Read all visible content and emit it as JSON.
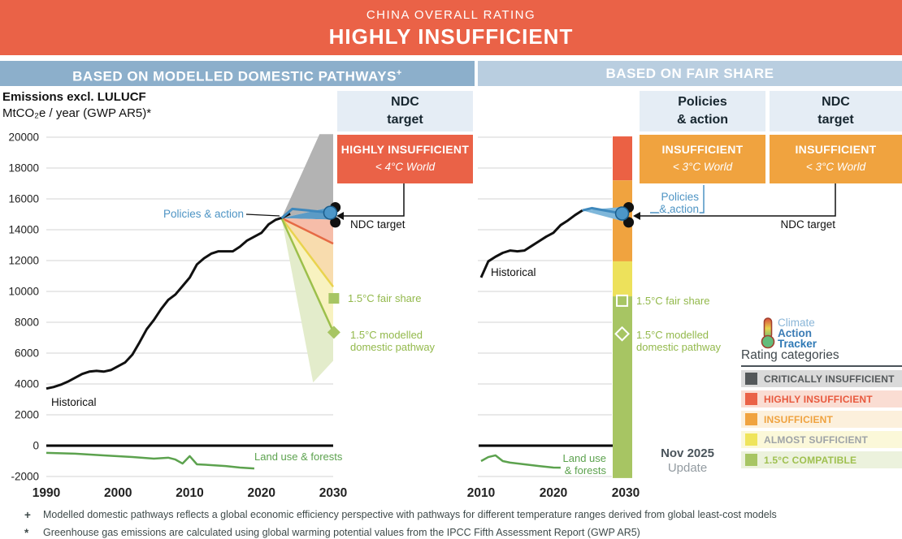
{
  "header": {
    "kicker": "CHINA OVERALL RATING",
    "rating": "HIGHLY INSUFFICIENT",
    "color": "#EA6247"
  },
  "panel_headers": {
    "left": "BASED ON MODELLED DOMESTIC PATHWAYS",
    "left_footnote_mark": "+",
    "right": "BASED ON FAIR SHARE",
    "left_color": "#8CAFCB",
    "right_color": "#B9CEE0"
  },
  "axis_block": {
    "title": "Emissions excl. LULUCF",
    "subtitle": "MtCO₂e / year (GWP AR5)*"
  },
  "rating_columns": [
    {
      "id": "ndc-left",
      "header_line1": "NDC",
      "header_line2": "target",
      "rating": "HIGHLY INSUFFICIENT",
      "world": "< 4°C World",
      "box_color": "#EA6247"
    },
    {
      "id": "pa-right",
      "header_line1": "Policies",
      "header_line2": "& action",
      "rating": "INSUFFICIENT",
      "world": "< 3°C World",
      "box_color": "#F0A33F"
    },
    {
      "id": "ndc-right",
      "header_line1": "NDC",
      "header_line2": "target",
      "rating": "INSUFFICIENT",
      "world": "< 3°C World",
      "box_color": "#F0A33F"
    }
  ],
  "logo": {
    "line1": "Climate",
    "line2": "Action",
    "line3": "Tracker"
  },
  "legend": {
    "title": "Rating categories",
    "items": [
      {
        "label": "CRITICALLY INSUFFICIENT",
        "square": "#54585A",
        "bg": "#DADADA",
        "text": "#54585A"
      },
      {
        "label": "HIGHLY INSUFFICIENT",
        "square": "#EA6247",
        "bg": "#FADDD3",
        "text": "#E8593E"
      },
      {
        "label": "INSUFFICIENT",
        "square": "#F0A33F",
        "bg": "#FCF0DC",
        "text": "#EFA23F"
      },
      {
        "label": "ALMOST SUFFICIENT",
        "square": "#EFE45C",
        "bg": "#FBF8D9",
        "text": "#9EA3A7"
      },
      {
        "label": "1.5°C COMPATIBLE",
        "square": "#A7C563",
        "bg": "#ECF2DD",
        "text": "#9FC050"
      }
    ]
  },
  "update_badge": {
    "line1": "Nov 2025",
    "line2": "Update"
  },
  "footnotes": [
    {
      "symbol": "+",
      "text": "Modelled domestic pathways reflects a global economic efficiency perspective with pathways for different temperature ranges derived from global least-cost models"
    },
    {
      "symbol": "*",
      "text": "Greenhouse gas emissions are calculated using global warming potential values from the IPCC Fifth Assessment Report (GWP AR5)"
    }
  ],
  "chart_data": {
    "type": "line",
    "unit": "MtCO2e / year (GWP AR5)",
    "y_ticks": [
      20000,
      18000,
      16000,
      14000,
      12000,
      10000,
      8000,
      6000,
      4000,
      2000,
      0,
      -2000
    ],
    "colors": {
      "historical": "#111111",
      "land_use": "#5CA24E",
      "gridline": "#DCDCDC",
      "zero_line": "#000000"
    },
    "labels": {
      "left_policies_action": "Policies & action",
      "left_historical": "Historical",
      "left_ndc_target": "NDC target",
      "left_fair_share": "1.5°C fair share",
      "left_modelled_1": "1.5°C modelled",
      "left_modelled_2": "domestic pathway",
      "left_land_use": "Land use & forests",
      "right_historical": "Historical",
      "right_policies_1": "Policies",
      "right_policies_2": "& action",
      "right_ndc_target": "NDC target",
      "right_fair_share": "1.5°C fair share",
      "right_modelled_1": "1.5°C modelled",
      "right_modelled_2": "domestic pathway",
      "right_land_use_1": "Land use",
      "right_land_use_2": "& forests"
    },
    "left": {
      "title": "Based on modelled domestic pathways",
      "x_ticks": [
        1990,
        2000,
        2010,
        2020,
        2030
      ],
      "historical": {
        "start_year": 1990,
        "values": [
          3700,
          3800,
          3950,
          4150,
          4400,
          4650,
          4800,
          4850,
          4800,
          4900,
          5150,
          5400,
          5900,
          6700,
          7550,
          8150,
          8850,
          9450,
          9800,
          10350,
          10900,
          11750,
          12150,
          12450,
          12600,
          12600,
          12600,
          12900,
          13300,
          13550,
          13800,
          14350,
          14650,
          14800,
          15050
        ]
      },
      "land_use": {
        "years": [
          1990,
          1994,
          1998,
          2002,
          2005,
          2007,
          2008,
          2009,
          2010,
          2011,
          2013,
          2015,
          2017,
          2019
        ],
        "values": [
          -470,
          -520,
          -630,
          -740,
          -840,
          -780,
          -900,
          -1160,
          -680,
          -1210,
          -1260,
          -1320,
          -1420,
          -1480
        ]
      },
      "fan": {
        "apex": {
          "year": 2022.8,
          "value": 14750
        },
        "bands": [
          {
            "name": "critically_insufficient_range",
            "fill": "#B3B3B3",
            "top_end": 20200,
            "top_clip_year": 2028.1,
            "bottom_end": 15500
          },
          {
            "name": "policies_action_range",
            "fill": "#5B9BC6",
            "top_end": 15500,
            "bottom_end": 14650
          },
          {
            "name": "highly_insufficient_range",
            "fill": "#F6BDA9",
            "top_end": 14650,
            "bottom_end": 13100
          },
          {
            "name": "insufficient_range",
            "fill": "#F8DCAE",
            "top_end": 13100,
            "bottom_end": 10300
          },
          {
            "name": "almost_sufficient_range",
            "fill": "#F8F2C0",
            "top_end": 10300,
            "bottom_end": 7400
          },
          {
            "name": "compatible_1_5_range",
            "fill": "#E3ECCB",
            "top_end": 7400,
            "bottom_end": 5500,
            "dip": {
              "year": 2027.2,
              "value": 4100
            }
          }
        ],
        "boundary_lines": [
          {
            "name": "highly_insufficient_boundary",
            "color": "#E66A45",
            "end": 13100
          },
          {
            "name": "almost_sufficient_boundary",
            "color": "#E9D34E",
            "end": 10300
          },
          {
            "name": "modelled_pathway_boundary",
            "color": "#9CBF4B",
            "end": 7400
          }
        ],
        "policies_line": {
          "color": "#3E88BC",
          "points": [
            [
              2022.8,
              14750
            ],
            [
              2024.3,
              15350
            ],
            [
              2026.5,
              15250
            ],
            [
              2029.6,
              15100
            ]
          ]
        }
      },
      "markers": {
        "policies_circle": {
          "year": 2029.6,
          "value": 15100,
          "fill": "#4C96C8",
          "stroke": "#1C5E8C"
        },
        "ndc_dots": [
          {
            "year": 2030.3,
            "value": 15450
          },
          {
            "year": 2030.3,
            "value": 14480
          }
        ],
        "fair_share_square": {
          "year": 2030.1,
          "value": 9550,
          "fill": "#A7C563"
        },
        "modelled_diamond": {
          "year": 2030.1,
          "value": 7350,
          "fill": "#A7C563"
        }
      }
    },
    "right": {
      "title": "Based on fair share",
      "x_ticks": [
        2010,
        2020,
        2030
      ],
      "historical": {
        "start_year": 2010,
        "values": [
          10900,
          11950,
          12250,
          12500,
          12650,
          12600,
          12650,
          12950,
          13250,
          13550,
          13800,
          14300,
          14600,
          14950,
          15250
        ]
      },
      "land_use": {
        "years": [
          2010,
          2011,
          2012,
          2013,
          2014,
          2016,
          2018,
          2020,
          2021
        ],
        "values": [
          -1000,
          -740,
          -630,
          -1000,
          -1100,
          -1210,
          -1320,
          -1420,
          -1430
        ]
      },
      "band": {
        "start": {
          "year": 2024,
          "value": 15250
        },
        "top_end": 15500,
        "bottom_end": 14500,
        "fill": "#7FB7DA",
        "line": {
          "color": "#3E88BC",
          "points": [
            [
              2024,
              15250
            ],
            [
              2025.3,
              15400
            ],
            [
              2029.5,
              15050
            ]
          ]
        }
      },
      "bar": {
        "center_year": 2030,
        "width": 24,
        "zones": [
          {
            "name": "highly_insufficient_zone",
            "color": "#EB6144",
            "from": 20050,
            "to": 17200
          },
          {
            "name": "insufficient_zone",
            "color": "#F0A33F",
            "from": 17200,
            "to": 11950
          },
          {
            "name": "almost_sufficient_zone",
            "color": "#EDE15B",
            "from": 11950,
            "to": 9680
          },
          {
            "name": "compatible_1_5_zone",
            "color": "#A7C563",
            "from": 9680,
            "to": -2100
          }
        ]
      },
      "markers": {
        "policies_circle": {
          "year": 2029.5,
          "value": 15050,
          "fill": "#4C96C8",
          "stroke": "#1C5E8C"
        },
        "ndc_dots": [
          {
            "year": 2030.4,
            "value": 15450
          },
          {
            "year": 2030.4,
            "value": 14480
          }
        ],
        "fair_share_square": {
          "year": 2029.5,
          "value": 9400,
          "stroke": "#FFFFFF"
        },
        "modelled_diamond": {
          "year": 2029.5,
          "value": 7250,
          "stroke": "#FFFFFF"
        }
      }
    }
  }
}
